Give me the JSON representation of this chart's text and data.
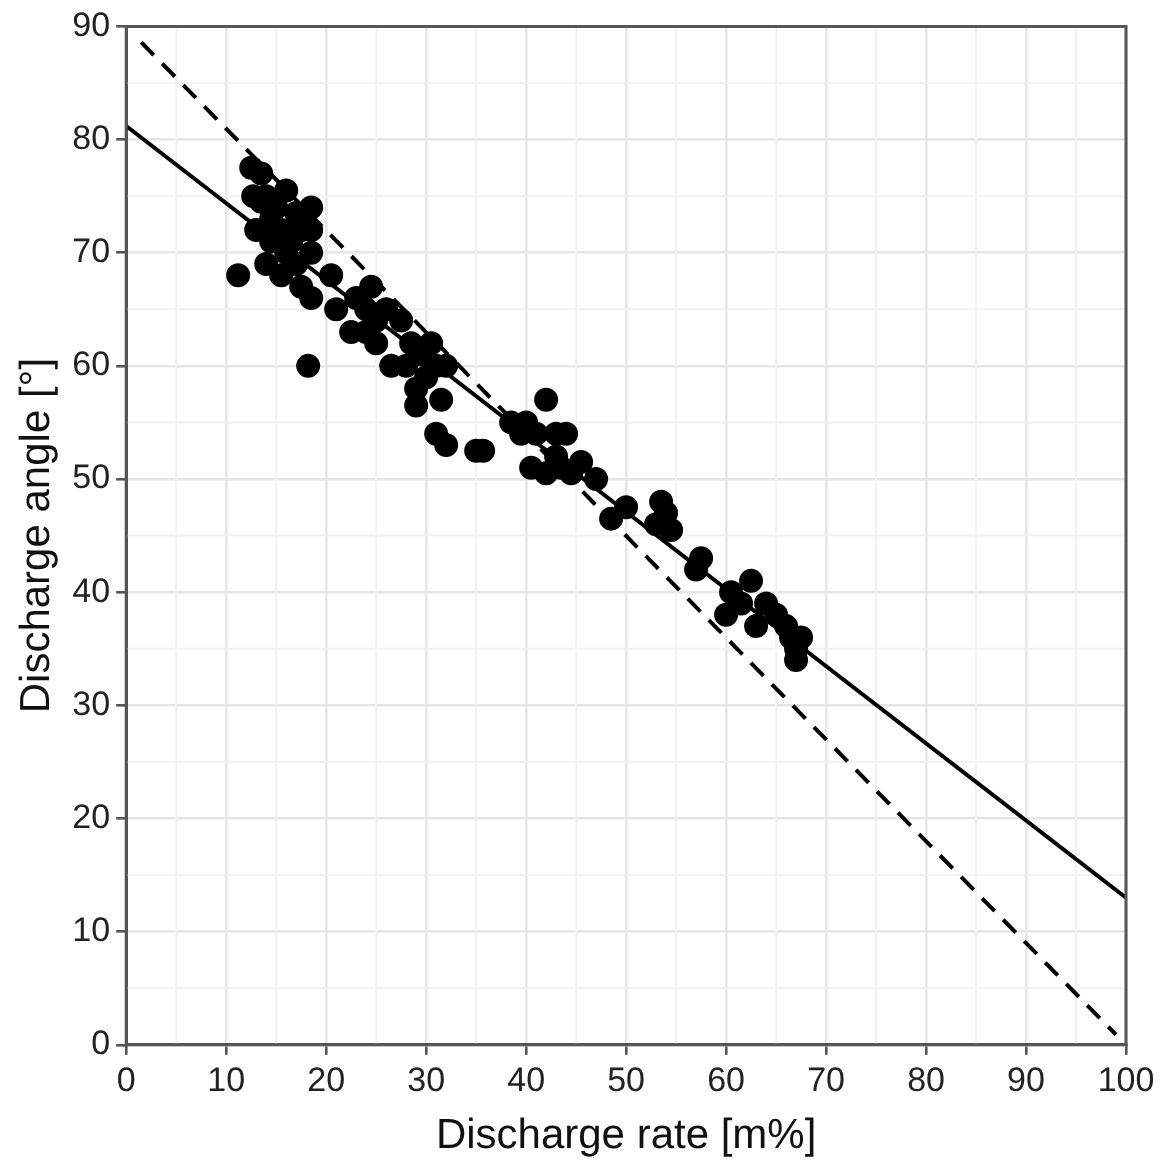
{
  "chart_data": {
    "type": "scatter",
    "xlabel": "Discharge rate [m%]",
    "ylabel": "Discharge angle [°]",
    "xlim": [
      0,
      100
    ],
    "ylim": [
      0,
      90
    ],
    "xticks": [
      0,
      10,
      20,
      30,
      40,
      50,
      60,
      70,
      80,
      90,
      100
    ],
    "yticks": [
      0,
      10,
      20,
      30,
      40,
      50,
      60,
      70,
      80,
      90
    ],
    "grid": true,
    "legend": false,
    "marker": "circle",
    "series": [
      {
        "type": "scatter",
        "color": "#000000",
        "x": [
          12.5,
          13.5,
          12.7,
          13.5,
          14,
          15,
          14.5,
          16,
          13,
          14.5,
          15.5,
          16.5,
          17,
          17.5,
          18.5,
          18.5,
          16,
          17,
          15.5,
          14,
          11.2,
          17.5,
          18.5,
          18.5,
          18.2,
          20.5,
          21,
          22.5,
          23,
          24,
          24.5,
          25,
          26,
          25,
          24,
          26.5,
          27.5,
          28,
          28.5,
          29,
          29,
          29.5,
          30,
          30.5,
          31,
          31.5,
          32,
          31,
          32,
          35,
          35.7,
          38.5,
          39.5,
          40,
          41,
          42,
          40.5,
          42,
          43,
          43,
          44,
          43.5,
          44.5,
          45.5,
          47,
          48.5,
          50,
          53,
          53.5,
          54,
          54.5,
          57,
          57.5,
          60,
          60.5,
          61.5,
          62.5,
          63,
          64,
          65,
          66,
          66.5,
          67,
          67.5,
          67
        ],
        "values": [
          77.5,
          77,
          75,
          74.5,
          75,
          74,
          73,
          75.5,
          72,
          71,
          72,
          71,
          73.5,
          72,
          74,
          72,
          70,
          69,
          68,
          69,
          68,
          67,
          66,
          70,
          60,
          68,
          65,
          63,
          66,
          65,
          67,
          64,
          65,
          62,
          63,
          60,
          64,
          60,
          62,
          58,
          56.5,
          61,
          59,
          62,
          60,
          57,
          60,
          54,
          53,
          52.5,
          52.5,
          55,
          54,
          55,
          54,
          57,
          51,
          50.5,
          52,
          54,
          54,
          51,
          50.5,
          51.5,
          50,
          46.5,
          47.5,
          46,
          48,
          47,
          45.5,
          42,
          43,
          38,
          40,
          39,
          41,
          37,
          39,
          38,
          37,
          36,
          34,
          36,
          35
        ]
      },
      {
        "type": "line",
        "line_style": "solid",
        "marker": "none",
        "color": "#000000",
        "x": [
          0,
          100
        ],
        "values": [
          81.2,
          13
        ]
      },
      {
        "type": "line",
        "line_style": "dashed",
        "marker": "none",
        "color": "#000000",
        "x": [
          1.5,
          99
        ],
        "values": [
          88.6,
          0.9
        ]
      }
    ]
  }
}
